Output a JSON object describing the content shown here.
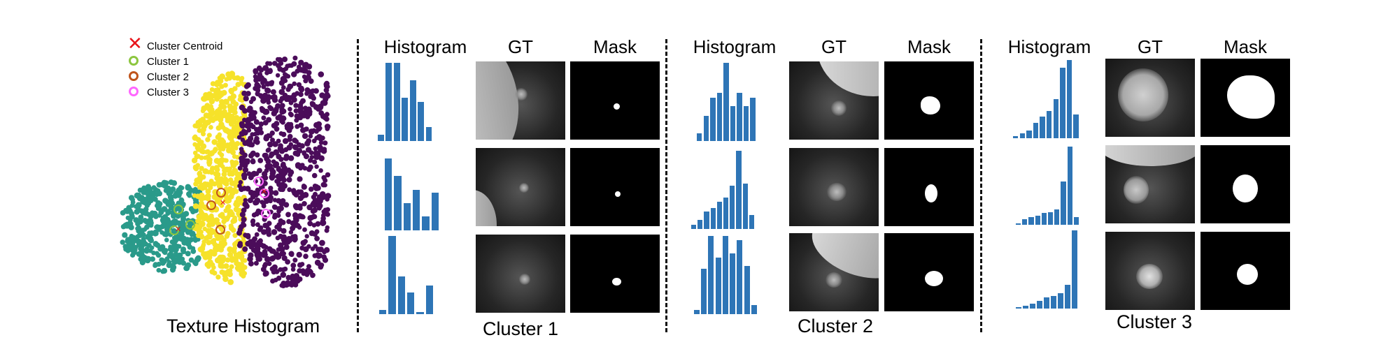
{
  "legend": {
    "centroid": "Cluster Centroid",
    "cluster1": "Cluster 1",
    "cluster2": "Cluster 2",
    "cluster3": "Cluster 3"
  },
  "colors": {
    "centroid": "#e8141a",
    "cluster1_marker": "#8cc63f",
    "cluster2_marker": "#c0551c",
    "cluster3_marker": "#ff66ff",
    "teal": "#2a9a8a",
    "yellow": "#f6e22a",
    "purple": "#4b0c5a",
    "bar": "#2e75b6"
  },
  "left_title": "Texture Histogram",
  "headers": {
    "histogram": "Histogram",
    "gt": "GT",
    "mask": "Mask"
  },
  "clusters": [
    {
      "label": "Cluster 1",
      "histograms": [
        [
          0.08,
          1.0,
          1.0,
          0.55,
          0.78,
          0.5,
          0.18
        ],
        [
          0.92,
          0.7,
          0.35,
          0.52,
          0.18,
          0.48
        ],
        [
          0.05,
          1.0,
          0.48,
          0.28,
          0.03,
          0.37
        ]
      ]
    },
    {
      "label": "Cluster 2",
      "histograms": [
        [
          0.1,
          0.32,
          0.55,
          0.62,
          1.0,
          0.45,
          0.62,
          0.45,
          0.55
        ],
        [
          0.05,
          0.12,
          0.22,
          0.27,
          0.35,
          0.4,
          0.55,
          1.0,
          0.58,
          0.18
        ],
        [
          0.05,
          0.58,
          1.0,
          0.72,
          1.0,
          0.78,
          0.95,
          0.62,
          0.12
        ]
      ]
    },
    {
      "label": "Cluster 3",
      "histograms": [
        [
          0.03,
          0.06,
          0.1,
          0.2,
          0.28,
          0.35,
          0.5,
          0.9,
          1.0,
          0.3
        ],
        [
          0.02,
          0.07,
          0.1,
          0.12,
          0.15,
          0.16,
          0.2,
          0.55,
          1.0,
          0.1
        ],
        [
          0.02,
          0.04,
          0.06,
          0.1,
          0.14,
          0.16,
          0.2,
          0.3,
          1.0
        ]
      ]
    }
  ]
}
